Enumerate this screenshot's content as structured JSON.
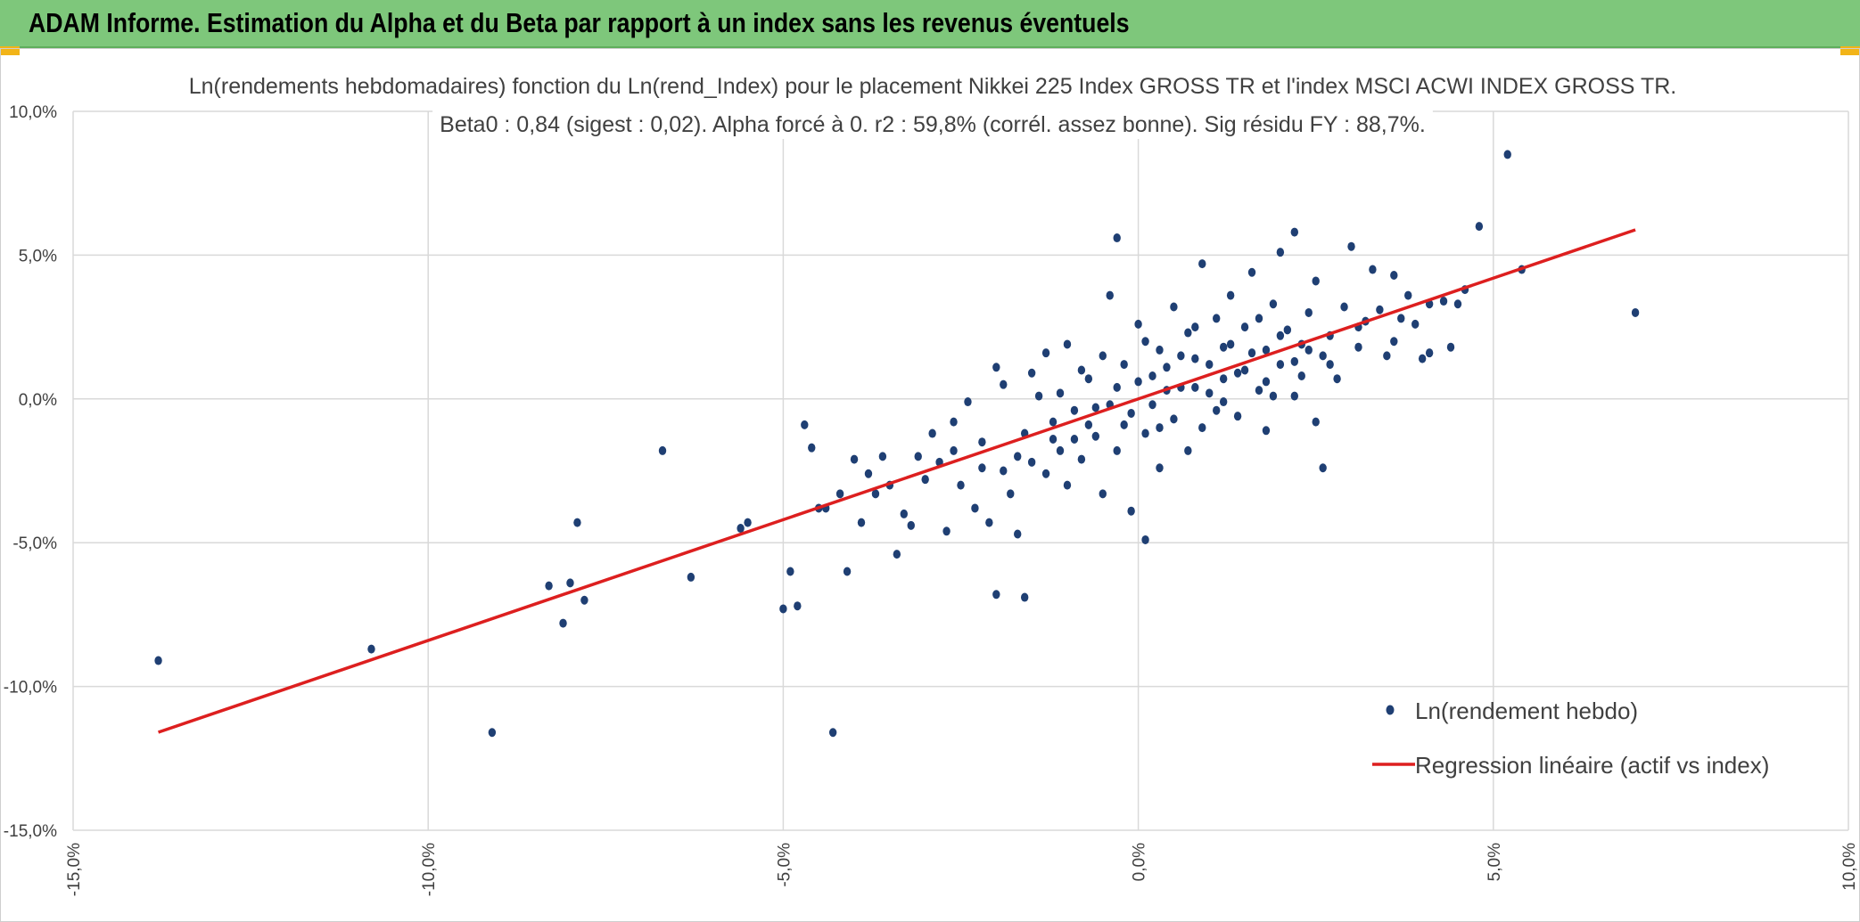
{
  "header": {
    "title": "ADAM Informe. Estimation du Alpha et du Beta par rapport à un index sans les revenus éventuels",
    "background_color": "#7ec77b",
    "accent_color": "#f2b418"
  },
  "chart_data": {
    "type": "scatter",
    "title_lines": [
      "Ln(rendements hebdomadaires) fonction du Ln(rend_Index) pour le placement Nikkei 225 Index GROSS TR et l'index MSCI ACWI INDEX GROSS TR.",
      "Beta0 : 0,84 (sigest : 0,02). Alpha forcé à 0. r2 : 59,8% (corrél. assez bonne). Sig résidu FY : 88,7%."
    ],
    "xlabel": "",
    "ylabel": "",
    "xlim": [
      -0.15,
      0.1
    ],
    "ylim": [
      -0.15,
      0.1
    ],
    "x_ticks": [
      -0.15,
      -0.1,
      -0.05,
      0.0,
      0.05,
      0.1
    ],
    "x_tick_labels": [
      "-15,0%",
      "-10,0%",
      "-5,0%",
      "0,0%",
      "5,0%",
      "10,0%"
    ],
    "y_ticks": [
      0.1,
      0.05,
      0.0,
      -0.05,
      -0.1,
      -0.15
    ],
    "y_tick_labels": [
      "10,0%",
      "5,0%",
      "0,0%",
      "-5,0%",
      "-10,0%",
      "-15,0%"
    ],
    "grid": true,
    "legend_position": "bottom-right",
    "series": [
      {
        "name": "Ln(rendement hebdo)",
        "kind": "scatter",
        "color": "#1f3f73",
        "points": [
          [
            -0.138,
            -0.091
          ],
          [
            -0.108,
            -0.087
          ],
          [
            -0.091,
            -0.116
          ],
          [
            -0.083,
            -0.065
          ],
          [
            -0.081,
            -0.078
          ],
          [
            -0.08,
            -0.064
          ],
          [
            -0.079,
            -0.043
          ],
          [
            -0.078,
            -0.07
          ],
          [
            -0.067,
            -0.018
          ],
          [
            -0.063,
            -0.062
          ],
          [
            -0.056,
            -0.045
          ],
          [
            -0.055,
            -0.043
          ],
          [
            -0.05,
            -0.073
          ],
          [
            -0.049,
            -0.06
          ],
          [
            -0.048,
            -0.072
          ],
          [
            -0.047,
            -0.009
          ],
          [
            -0.046,
            -0.017
          ],
          [
            -0.045,
            -0.038
          ],
          [
            -0.044,
            -0.038
          ],
          [
            -0.043,
            -0.116
          ],
          [
            -0.041,
            -0.06
          ],
          [
            -0.04,
            -0.021
          ],
          [
            -0.039,
            -0.043
          ],
          [
            -0.038,
            -0.026
          ],
          [
            -0.036,
            -0.02
          ],
          [
            -0.035,
            -0.03
          ],
          [
            -0.034,
            -0.054
          ],
          [
            -0.033,
            -0.04
          ],
          [
            -0.032,
            -0.044
          ],
          [
            -0.03,
            -0.028
          ],
          [
            -0.029,
            -0.012
          ],
          [
            -0.028,
            -0.022
          ],
          [
            -0.027,
            -0.046
          ],
          [
            -0.026,
            -0.018
          ],
          [
            -0.025,
            -0.03
          ],
          [
            -0.024,
            -0.001
          ],
          [
            -0.023,
            -0.038
          ],
          [
            -0.022,
            -0.015
          ],
          [
            -0.021,
            -0.043
          ],
          [
            -0.02,
            -0.068
          ],
          [
            -0.02,
            0.011
          ],
          [
            -0.019,
            -0.025
          ],
          [
            -0.018,
            -0.033
          ],
          [
            -0.017,
            -0.047
          ],
          [
            -0.016,
            -0.069
          ],
          [
            -0.016,
            -0.012
          ],
          [
            -0.015,
            -0.022
          ],
          [
            -0.014,
            0.001
          ],
          [
            -0.013,
            -0.026
          ],
          [
            -0.012,
            -0.008
          ],
          [
            -0.011,
            -0.018
          ],
          [
            -0.01,
            -0.03
          ],
          [
            -0.01,
            0.019
          ],
          [
            -0.009,
            -0.004
          ],
          [
            -0.008,
            -0.021
          ],
          [
            -0.007,
            0.007
          ],
          [
            -0.006,
            -0.013
          ],
          [
            -0.005,
            -0.033
          ],
          [
            -0.004,
            0.036
          ],
          [
            -0.004,
            -0.002
          ],
          [
            -0.003,
            -0.018
          ],
          [
            -0.002,
            0.012
          ],
          [
            -0.001,
            -0.039
          ],
          [
            -0.001,
            -0.005
          ],
          [
            0.0,
            0.026
          ],
          [
            0.001,
            -0.049
          ],
          [
            0.001,
            -0.012
          ],
          [
            0.002,
            0.008
          ],
          [
            0.003,
            0.017
          ],
          [
            0.003,
            -0.024
          ],
          [
            0.004,
            0.003
          ],
          [
            0.005,
            0.032
          ],
          [
            0.005,
            -0.007
          ],
          [
            0.006,
            0.015
          ],
          [
            0.007,
            -0.018
          ],
          [
            0.007,
            0.023
          ],
          [
            0.008,
            0.004
          ],
          [
            0.009,
            0.047
          ],
          [
            0.009,
            -0.01
          ],
          [
            0.01,
            0.012
          ],
          [
            0.011,
            0.028
          ],
          [
            0.011,
            -0.004
          ],
          [
            0.012,
            0.007
          ],
          [
            0.013,
            0.036
          ],
          [
            0.013,
            0.019
          ],
          [
            0.014,
            -0.006
          ],
          [
            0.015,
            0.025
          ],
          [
            0.015,
            0.01
          ],
          [
            0.016,
            0.044
          ],
          [
            0.017,
            0.003
          ],
          [
            0.018,
            0.017
          ],
          [
            0.018,
            -0.011
          ],
          [
            0.019,
            0.033
          ],
          [
            0.02,
            0.051
          ],
          [
            0.02,
            0.012
          ],
          [
            0.021,
            0.024
          ],
          [
            0.022,
            0.058
          ],
          [
            0.022,
            0.001
          ],
          [
            0.023,
            0.019
          ],
          [
            0.024,
            0.03
          ],
          [
            0.025,
            -0.008
          ],
          [
            0.025,
            0.041
          ],
          [
            0.026,
            0.015
          ],
          [
            0.026,
            -0.024
          ],
          [
            0.027,
            0.022
          ],
          [
            0.028,
            0.007
          ],
          [
            0.029,
            0.032
          ],
          [
            0.03,
            0.053
          ],
          [
            0.031,
            0.018
          ],
          [
            0.032,
            0.027
          ],
          [
            0.033,
            0.045
          ],
          [
            0.034,
            0.031
          ],
          [
            0.035,
            0.015
          ],
          [
            0.036,
            0.043
          ],
          [
            0.037,
            0.028
          ],
          [
            0.038,
            0.036
          ],
          [
            0.039,
            0.026
          ],
          [
            0.04,
            0.014
          ],
          [
            0.041,
            0.016
          ],
          [
            0.043,
            0.034
          ],
          [
            0.044,
            0.018
          ],
          [
            0.045,
            0.033
          ],
          [
            0.046,
            0.038
          ],
          [
            0.048,
            0.06
          ],
          [
            0.052,
            0.085
          ],
          [
            0.054,
            0.045
          ],
          [
            0.07,
            0.03
          ],
          [
            -0.003,
            0.056
          ],
          [
            -0.019,
            0.005
          ],
          [
            -0.015,
            0.009
          ],
          [
            -0.013,
            0.016
          ],
          [
            -0.011,
            0.002
          ],
          [
            -0.009,
            -0.014
          ],
          [
            -0.008,
            0.01
          ],
          [
            -0.006,
            -0.003
          ],
          [
            -0.003,
            0.004
          ],
          [
            -0.002,
            -0.009
          ],
          [
            0.0,
            0.006
          ],
          [
            0.002,
            -0.002
          ],
          [
            0.004,
            0.011
          ],
          [
            0.006,
            0.004
          ],
          [
            0.008,
            0.014
          ],
          [
            0.01,
            0.002
          ],
          [
            0.012,
            0.018
          ],
          [
            0.014,
            0.009
          ],
          [
            0.016,
            0.016
          ],
          [
            0.018,
            0.006
          ],
          [
            0.02,
            0.022
          ],
          [
            0.022,
            0.013
          ],
          [
            0.024,
            0.017
          ],
          [
            -0.026,
            -0.008
          ],
          [
            -0.031,
            -0.02
          ],
          [
            -0.037,
            -0.033
          ],
          [
            -0.042,
            -0.033
          ],
          [
            -0.022,
            -0.024
          ],
          [
            -0.017,
            -0.02
          ],
          [
            -0.012,
            -0.014
          ],
          [
            -0.007,
            -0.009
          ],
          [
            -0.005,
            0.015
          ],
          [
            0.001,
            0.02
          ],
          [
            0.003,
            -0.01
          ],
          [
            0.008,
            0.025
          ],
          [
            0.012,
            -0.001
          ],
          [
            0.017,
            0.028
          ],
          [
            0.019,
            0.001
          ],
          [
            0.023,
            0.008
          ],
          [
            0.027,
            0.012
          ],
          [
            0.031,
            0.025
          ],
          [
            0.036,
            0.02
          ],
          [
            0.041,
            0.033
          ]
        ]
      },
      {
        "name": "Regression linéaire (actif vs index)",
        "kind": "line",
        "color": "#dd1f1f",
        "beta": 0.84,
        "alpha": 0,
        "x": [
          -0.138,
          0.07
        ]
      }
    ]
  }
}
